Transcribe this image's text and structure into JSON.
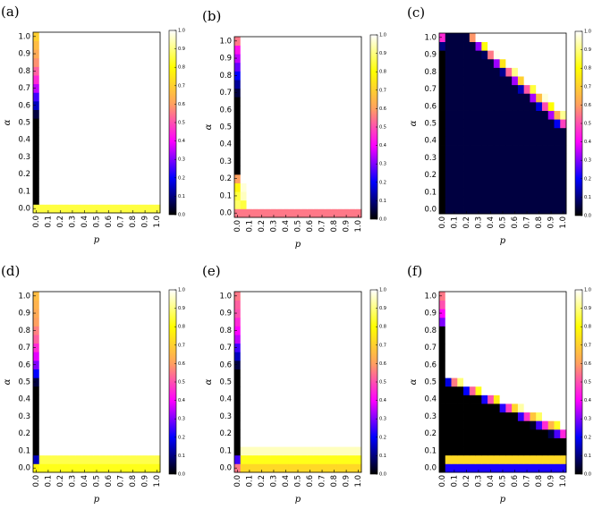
{
  "figure": {
    "colormap": "gnuplot2",
    "colormap_stops": [
      "#000000",
      "#0000ff",
      "#ff00ff",
      "#ffa060",
      "#ffff00",
      "#ffffff"
    ]
  },
  "chart_data": [
    {
      "type": "heatmap",
      "panel_label": "(a)",
      "xlabel": "p",
      "ylabel": "α",
      "x_ticks": [
        "0.0",
        "0.1",
        "0.2",
        "0.3",
        "0.4",
        "0.5",
        "0.6",
        "0.7",
        "0.8",
        "0.9",
        "1.0"
      ],
      "y_ticks": [
        "0.0",
        "0.1",
        "0.2",
        "0.3",
        "0.4",
        "0.5",
        "0.6",
        "0.7",
        "0.8",
        "0.9",
        "1.0"
      ],
      "colorbar_ticks": [
        "0.0",
        "0.1",
        "0.2",
        "0.3",
        "0.4",
        "0.5",
        "0.6",
        "0.7",
        "0.8",
        "0.9",
        "1.0"
      ],
      "grid_size": 21,
      "value_range": [
        0,
        1
      ],
      "default_value": 1.0,
      "column0": [
        0.85,
        0.0,
        0.0,
        0.0,
        0.0,
        0.0,
        0.0,
        0.0,
        0.0,
        0.0,
        0.0,
        0.05,
        0.15,
        0.25,
        0.35,
        0.45,
        0.52,
        0.58,
        0.62,
        0.66,
        0.7
      ],
      "row0_from_col1": [
        0.85
      ]
    },
    {
      "type": "heatmap",
      "panel_label": "(b)",
      "xlabel": "p",
      "ylabel": "α",
      "x_ticks": [
        "0.0",
        "0.1",
        "0.2",
        "0.3",
        "0.4",
        "0.5",
        "0.6",
        "0.7",
        "0.8",
        "0.9",
        "1.0"
      ],
      "y_ticks": [
        "0.0",
        "0.1",
        "0.2",
        "0.3",
        "0.4",
        "0.5",
        "0.6",
        "0.7",
        "0.8",
        "0.9",
        "1.0"
      ],
      "colorbar_ticks": [
        "0.0",
        "0.1",
        "0.2",
        "0.3",
        "0.4",
        "0.5",
        "0.6",
        "0.7",
        "0.8",
        "0.9",
        "1.0"
      ],
      "grid_size": 21,
      "value_range": [
        0,
        1
      ],
      "default_value": 1.0,
      "column0": [
        0.55,
        0.88,
        0.85,
        0.78,
        0.6,
        0.0,
        0.0,
        0.0,
        0.0,
        0.0,
        0.0,
        0.0,
        0.0,
        0.0,
        0.05,
        0.12,
        0.2,
        0.28,
        0.35,
        0.42,
        0.55
      ],
      "row0_from_col1": [
        0.55
      ],
      "extra_cells": [
        [
          1,
          1,
          0.85
        ],
        [
          1,
          2,
          0.95
        ],
        [
          1,
          3,
          0.97
        ]
      ]
    },
    {
      "type": "heatmap",
      "panel_label": "(c)",
      "xlabel": "p",
      "ylabel": "α",
      "x_ticks": [
        "0.0",
        "0.1",
        "0.2",
        "0.3",
        "0.4",
        "0.5",
        "0.6",
        "0.7",
        "0.8",
        "0.9",
        "1.0"
      ],
      "y_ticks": [
        "0.0",
        "0.1",
        "0.2",
        "0.3",
        "0.4",
        "0.5",
        "0.6",
        "0.7",
        "0.8",
        "0.9",
        "1.0"
      ],
      "colorbar_ticks": [
        "0.0",
        "0.1",
        "0.2",
        "0.3",
        "0.4",
        "0.5",
        "0.6",
        "0.7",
        "0.8",
        "0.9",
        "1.0"
      ],
      "grid_size": 21,
      "value_range": [
        0,
        1
      ],
      "default_value": 1.0,
      "ramp": {
        "a": 1.18,
        "h": 0.62,
        "w0": 0.04,
        "dw": 0.07,
        "hi_offset": 0.03,
        "floor": 0.05,
        "peak": 0.86
      },
      "column0_override": {
        "19": 0.1,
        "20": 0.45
      },
      "row0_from_col1": [
        0.05
      ]
    },
    {
      "type": "heatmap",
      "panel_label": "(d)",
      "xlabel": "p",
      "ylabel": "α",
      "x_ticks": [
        "0.0",
        "0.1",
        "0.2",
        "0.3",
        "0.4",
        "0.5",
        "0.6",
        "0.7",
        "0.8",
        "0.9",
        "1.0"
      ],
      "y_ticks": [
        "0.0",
        "0.1",
        "0.2",
        "0.3",
        "0.4",
        "0.5",
        "0.6",
        "0.7",
        "0.8",
        "0.9",
        "1.0"
      ],
      "colorbar_ticks": [
        "0.0",
        "0.1",
        "0.2",
        "0.3",
        "0.4",
        "0.5",
        "0.6",
        "0.7",
        "0.8",
        "0.9",
        "1.0"
      ],
      "grid_size": 21,
      "value_range": [
        0,
        1
      ],
      "default_value": 1.0,
      "column0": [
        0.78,
        0.15,
        0.0,
        0.0,
        0.0,
        0.0,
        0.0,
        0.0,
        0.0,
        0.0,
        0.05,
        0.2,
        0.3,
        0.38,
        0.45,
        0.52,
        0.56,
        0.6,
        0.62,
        0.64,
        0.66
      ],
      "row0_from_col1": [
        0.82,
        0.86
      ]
    },
    {
      "type": "heatmap",
      "panel_label": "(e)",
      "xlabel": "p",
      "ylabel": "α",
      "x_ticks": [
        "0.0",
        "0.1",
        "0.2",
        "0.3",
        "0.4",
        "0.5",
        "0.6",
        "0.7",
        "0.8",
        "0.9",
        "1.0"
      ],
      "y_ticks": [
        "0.0",
        "0.1",
        "0.2",
        "0.3",
        "0.4",
        "0.5",
        "0.6",
        "0.7",
        "0.8",
        "0.9",
        "1.0"
      ],
      "colorbar_ticks": [
        "0.0",
        "0.1",
        "0.2",
        "0.3",
        "0.4",
        "0.5",
        "0.6",
        "0.7",
        "0.8",
        "0.9",
        "1.0"
      ],
      "grid_size": 21,
      "value_range": [
        0,
        1
      ],
      "default_value": 1.0,
      "column0": [
        0.55,
        0.25,
        0.0,
        0.0,
        0.0,
        0.0,
        0.0,
        0.0,
        0.0,
        0.0,
        0.0,
        0.0,
        0.05,
        0.15,
        0.25,
        0.35,
        0.4,
        0.45,
        0.5,
        0.52,
        0.55
      ],
      "row0_from_col1": [
        0.72,
        0.82,
        0.95
      ]
    },
    {
      "type": "heatmap",
      "panel_label": "(f)",
      "xlabel": "p",
      "ylabel": "α",
      "x_ticks": [
        "0.0",
        "0.1",
        "0.2",
        "0.3",
        "0.4",
        "0.5",
        "0.6",
        "0.7",
        "0.8",
        "0.9",
        "1.0"
      ],
      "y_ticks": [
        "0.0",
        "0.1",
        "0.2",
        "0.3",
        "0.4",
        "0.5",
        "0.6",
        "0.7",
        "0.8",
        "0.9",
        "1.0"
      ],
      "colorbar_ticks": [
        "0.0",
        "0.1",
        "0.2",
        "0.3",
        "0.4",
        "0.5",
        "0.6",
        "0.7",
        "0.8",
        "0.9",
        "1.0"
      ],
      "grid_size": 21,
      "value_range": [
        0,
        1
      ],
      "default_value": 1.0,
      "ramp": {
        "a": 0.55,
        "h": 0.3,
        "w0": 0.04,
        "dw": 0.05,
        "hi_offset": 0.03,
        "floor": 0.0,
        "peak": 0.86
      },
      "column0_override": {
        "17": 0.3,
        "18": 0.4,
        "19": 0.5,
        "20": 0.55
      },
      "row0_from_col1": [
        0.22,
        0.72
      ]
    }
  ]
}
